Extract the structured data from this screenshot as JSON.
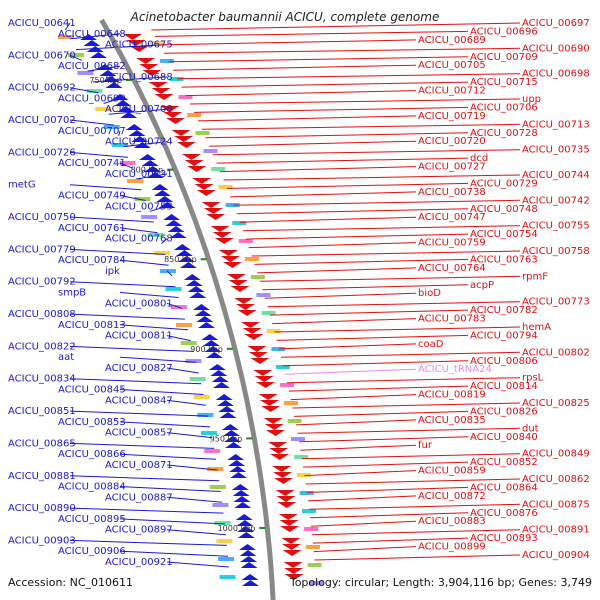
{
  "title": "Acinetobacter baumannii ACICU, complete genome",
  "accession": "Accession: NC_010611",
  "summary": "Topology: circular; Length: 3,904,116 bp; Genes: 3,749",
  "colors": {
    "left_strand": "#1a1ad0",
    "right_strand": "#e01010",
    "rna": "#ee88ee",
    "backbone": "#888888",
    "tick": "#1e8c1e"
  },
  "ticks": [
    "750 kbp",
    "800 kbp",
    "850 kbp",
    "900 kbp",
    "950 kbp",
    "1000 kbp"
  ],
  "left_labels": [
    "ACICU_00641",
    "ACICU_00648",
    "ACICU_00675",
    "ACICU_00670",
    "ACICU_00682",
    "ACICU_00688",
    "ACICU_00692",
    "ACICU_00699",
    "ACICU_00708",
    "ACICU_00702",
    "ACICU_00707",
    "ACICU_00724",
    "ACICU_00726",
    "ACICU_00741",
    "ACICU_00731",
    "metG",
    "ACICU_00749",
    "ACICU_00753",
    "ACICU_00750",
    "ACICU_00761",
    "ACICU_00768",
    "ACICU_00779",
    "ACICU_00784",
    "ipk",
    "ACICU_00792",
    "smpB",
    "ACICU_00801",
    "ACICU_00808",
    "ACICU_00813",
    "ACICU_00811",
    "ACICU_00822",
    "aat",
    "ACICU_00827",
    "ACICU_00834",
    "ACICU_00845",
    "ACICU_00847",
    "ACICU_00851",
    "ACICU_00853",
    "ACICU_00857",
    "ACICU_00865",
    "ACICU_00866",
    "ACICU_00871",
    "ACICU_00881",
    "ACICU_00884",
    "ACICU_00887",
    "ACICU_00890",
    "ACICU_00895",
    "ACICU_00897",
    "ACICU_00903",
    "ACICU_00906",
    "ACICU_00921"
  ],
  "right_labels": [
    "ACICU_00697",
    "ACICU_00696",
    "ACICU_00689",
    "ACICU_00690",
    "ACICU_00709",
    "ACICU_00705",
    "ACICU_00698",
    "ACICU_00715",
    "ACICU_00712",
    "upp",
    "ACICU_00706",
    "ACICU_00719",
    "ACICU_00713",
    "ACICU_00728",
    "ACICU_00720",
    "ACICU_00735",
    "dcd",
    "ACICU_00727",
    "ACICU_00744",
    "ACICU_00729",
    "ACICU_00738",
    "ACICU_00742",
    "ACICU_00748",
    "ACICU_00747",
    "ACICU_00755",
    "ACICU_00754",
    "ACICU_00759",
    "ACICU_00758",
    "ACICU_00763",
    "ACICU_00764",
    "rpmF",
    "acpP",
    "bioD",
    "ACICU_00773",
    "ACICU_00782",
    "ACICU_00783",
    "hemA",
    "ACICU_00794",
    "coaD",
    "ACICU_00802",
    "ACICU_00806",
    "ACICU_tRNA24",
    "rpsL",
    "ACICU_00814",
    "ACICU_00819",
    "ACICU_00825",
    "ACICU_00826",
    "ACICU_00835",
    "dut",
    "ACICU_00840",
    "fur",
    "ACICU_00849",
    "ACICU_00852",
    "ACICU_00859",
    "ACICU_00862",
    "ACICU_00864",
    "ACICU_00872",
    "ACICU_00875",
    "ACICU_00876",
    "ACICU_00883",
    "ACICU_00891",
    "ACICU_00893",
    "ACICU_00899",
    "ACICU_00904"
  ]
}
